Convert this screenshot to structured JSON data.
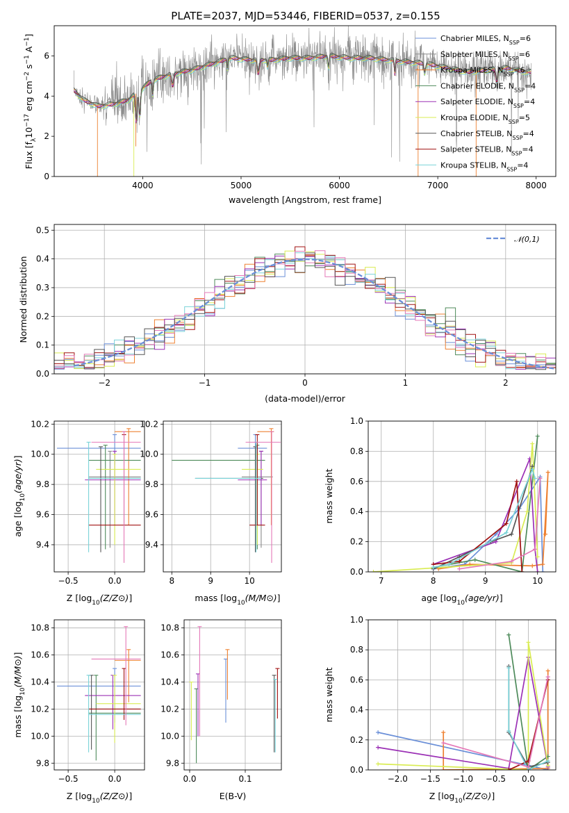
{
  "figure_title": "PLATE=2037, MJD=53446, FIBERID=0537, z=0.155",
  "colors": [
    "#6a8fd8",
    "#8a8a8a",
    "#ee8030",
    "#4d8a5a",
    "#9b30b5",
    "#d9ec52",
    "#555555",
    "#a01010",
    "#79d2d8",
    "#e478b8",
    "#e07820"
  ],
  "models": [
    {
      "name": "Chabrier MILES, N",
      "sub": "SSP",
      "n": "=6",
      "color": "#6a8fd8"
    },
    {
      "name": "Salpeter MILES, N",
      "sub": "SSP",
      "n": "=6",
      "color": "#8a8a8a"
    },
    {
      "name": "Kroupa MILES, N",
      "sub": "SSP",
      "n": "=6",
      "color": "#ee8030"
    },
    {
      "name": "Chabrier ELODIE, N",
      "sub": "SSP",
      "n": "=4",
      "color": "#4d8a5a"
    },
    {
      "name": "Salpeter ELODIE, N",
      "sub": "SSP",
      "n": "=4",
      "color": "#9b30b5"
    },
    {
      "name": "Kroupa ELODIE, N",
      "sub": "SSP",
      "n": "=5",
      "color": "#d9ec52"
    },
    {
      "name": "Chabrier STELIB, N",
      "sub": "SSP",
      "n": "=4",
      "color": "#555555"
    },
    {
      "name": "Salpeter STELIB, N",
      "sub": "SSP",
      "n": "=4",
      "color": "#a01010"
    },
    {
      "name": "Kroupa STELIB, N",
      "sub": "SSP",
      "n": "=4",
      "color": "#79d2d8"
    }
  ],
  "chart_data": [
    {
      "id": "spectrum",
      "type": "line",
      "xlabel": "wavelength [Angstrom, rest frame]",
      "ylabel": "Flux [f_λ 10^-17 erg cm^-2 s^-1 A^-1]",
      "xlim": [
        3100,
        8200
      ],
      "ylim": [
        0,
        7.5
      ],
      "xticks": [
        4000,
        5000,
        6000,
        7000,
        8000
      ],
      "yticks": [
        0,
        2,
        4,
        6
      ],
      "continuum_points": [
        [
          3300,
          4.3
        ],
        [
          3400,
          3.8
        ],
        [
          3550,
          3.5
        ],
        [
          3700,
          3.6
        ],
        [
          3850,
          3.8
        ],
        [
          3950,
          4.2
        ],
        [
          4100,
          4.8
        ],
        [
          4300,
          5.1
        ],
        [
          4500,
          5.3
        ],
        [
          4700,
          5.6
        ],
        [
          4900,
          5.9
        ],
        [
          5100,
          5.8
        ],
        [
          5300,
          5.8
        ],
        [
          5500,
          5.9
        ],
        [
          5700,
          5.9
        ],
        [
          5900,
          6.0
        ],
        [
          6100,
          5.9
        ],
        [
          6300,
          5.9
        ],
        [
          6500,
          5.8
        ],
        [
          6700,
          5.7
        ],
        [
          6900,
          5.6
        ],
        [
          7100,
          5.4
        ],
        [
          7300,
          5.2
        ],
        [
          7500,
          5.3
        ],
        [
          7700,
          5.4
        ],
        [
          7900,
          5.2
        ]
      ],
      "grid": false,
      "legend_position": "upper-right"
    },
    {
      "id": "residuals",
      "type": "step-histogram",
      "xlabel": "(data-model)/error",
      "ylabel": "Normed distribution",
      "xlim": [
        -2.5,
        2.5
      ],
      "ylim": [
        0,
        0.52
      ],
      "xticks": [
        -2,
        -1,
        0,
        1,
        2
      ],
      "yticks": [
        0.0,
        0.1,
        0.2,
        0.3,
        0.4,
        0.5
      ],
      "reference": {
        "name": "𝒩(0,1)",
        "type": "gaussian",
        "mean": 0,
        "sigma": 1
      },
      "bins": [
        -2.5,
        -2.4,
        -2.3,
        -2.2,
        -2.1,
        -2.0,
        -1.9,
        -1.8,
        -1.7,
        -1.6,
        -1.5,
        -1.4,
        -1.3,
        -1.2,
        -1.1,
        -1.0,
        -0.9,
        -0.8,
        -0.7,
        -0.6,
        -0.5,
        -0.4,
        -0.3,
        -0.2,
        -0.1,
        0.0,
        0.1,
        0.2,
        0.3,
        0.4,
        0.5,
        0.6,
        0.7,
        0.8,
        0.9,
        1.0,
        1.1,
        1.2,
        1.3,
        1.4,
        1.5,
        1.6,
        1.7,
        1.8,
        1.9,
        2.0,
        2.1,
        2.2,
        2.3,
        2.4,
        2.5
      ],
      "grid": true,
      "legend_position": "upper-right"
    },
    {
      "id": "age_vs_Z",
      "type": "errorbar",
      "xlabel": "Z [log10(Z/Z⊙)]",
      "ylabel": "age [log10(age/yr)]",
      "xlim": [
        -0.65,
        0.32
      ],
      "ylim": [
        9.22,
        10.22
      ],
      "xticks": [
        -0.5,
        0.0
      ],
      "xticklabels": [
        "−0.5",
        "0.0"
      ],
      "yticks": [
        9.4,
        9.6,
        9.8,
        10.0,
        10.2
      ],
      "points": [
        {
          "c": 0,
          "x": 0.0,
          "xe": [
            -0.62,
            0.28
          ],
          "y": 10.04,
          "ye": [
            9.93,
            10.13
          ]
        },
        {
          "c": 1,
          "x": -0.05,
          "xe": [
            -0.28,
            0.28
          ],
          "y": 9.85,
          "ye": [
            9.38,
            10.02
          ]
        },
        {
          "c": 2,
          "x": 0.15,
          "xe": [
            0.0,
            0.28
          ],
          "y": 10.15,
          "ye": [
            9.53,
            10.17
          ]
        },
        {
          "c": 3,
          "x": -0.1,
          "xe": [
            -0.28,
            0.28
          ],
          "y": 9.96,
          "ye": [
            9.37,
            10.06
          ]
        },
        {
          "c": 4,
          "x": 0.0,
          "xe": [
            -0.32,
            0.28
          ],
          "y": 9.83,
          "ye": [
            9.53,
            10.02
          ]
        },
        {
          "c": 5,
          "x": 0.0,
          "xe": [
            -0.2,
            0.28
          ],
          "y": 9.9,
          "ye": [
            9.4,
            10.0
          ]
        },
        {
          "c": 6,
          "x": -0.15,
          "xe": [
            -0.28,
            0.28
          ],
          "y": 9.84,
          "ye": [
            9.35,
            10.05
          ]
        },
        {
          "c": 7,
          "x": 0.1,
          "xe": [
            -0.28,
            0.28
          ],
          "y": 9.53,
          "ye": [
            9.53,
            10.13
          ]
        },
        {
          "c": 8,
          "x": -0.28,
          "xe": [
            -0.28,
            0.28
          ],
          "y": 9.84,
          "ye": [
            9.35,
            10.08
          ]
        },
        {
          "c": 9,
          "x": 0.1,
          "xe": [
            -0.25,
            0.28
          ],
          "y": 10.08,
          "ye": [
            9.28,
            10.15
          ]
        }
      ],
      "grid": true
    },
    {
      "id": "age_vs_mass",
      "type": "errorbar",
      "xlabel": "mass [log10(M/M⊙)]",
      "ylabel": "",
      "xlim": [
        7.78,
        10.82
      ],
      "ylim": [
        9.22,
        10.22
      ],
      "xticks": [
        8,
        9,
        10
      ],
      "yticks": [
        9.4,
        9.6,
        9.8,
        10.0,
        10.2
      ],
      "points": [
        {
          "c": 0,
          "x": 10.15,
          "xe": [
            9.7,
            10.45
          ],
          "y": 10.04,
          "ye": [
            9.93,
            10.13
          ]
        },
        {
          "c": 1,
          "x": 10.3,
          "xe": [
            9.8,
            10.6
          ],
          "y": 9.85,
          "ye": [
            9.38,
            10.02
          ]
        },
        {
          "c": 2,
          "x": 10.56,
          "xe": [
            10.2,
            10.63
          ],
          "y": 10.15,
          "ye": [
            9.53,
            10.17
          ]
        },
        {
          "c": 3,
          "x": 10.2,
          "xe": [
            8.0,
            10.4
          ],
          "y": 9.96,
          "ye": [
            9.37,
            10.06
          ]
        },
        {
          "c": 4,
          "x": 10.3,
          "xe": [
            9.7,
            10.45
          ],
          "y": 9.83,
          "ye": [
            9.53,
            10.02
          ]
        },
        {
          "c": 5,
          "x": 10.2,
          "xe": [
            9.8,
            10.35
          ],
          "y": 9.9,
          "ye": [
            9.4,
            10.0
          ]
        },
        {
          "c": 6,
          "x": 10.15,
          "xe": [
            8.6,
            10.35
          ],
          "y": 9.84,
          "ye": [
            9.35,
            10.05
          ]
        },
        {
          "c": 7,
          "x": 10.2,
          "xe": [
            10.0,
            10.4
          ],
          "y": 9.53,
          "ye": [
            9.53,
            10.13
          ]
        },
        {
          "c": 8,
          "x": 10.17,
          "xe": [
            8.6,
            10.3
          ],
          "y": 9.84,
          "ye": [
            9.35,
            10.08
          ]
        },
        {
          "c": 9,
          "x": 10.57,
          "xe": [
            9.9,
            10.8
          ],
          "y": 10.08,
          "ye": [
            9.28,
            10.15
          ]
        }
      ],
      "grid": true
    },
    {
      "id": "massweight_vs_age",
      "type": "line",
      "xlabel": "age [log10(age/yr)]",
      "ylabel": "mass weight",
      "xlim": [
        6.75,
        10.35
      ],
      "ylim": [
        0,
        1
      ],
      "xticks": [
        7,
        8,
        9,
        10
      ],
      "yticks": [
        0.0,
        0.2,
        0.4,
        0.6,
        0.8,
        1.0
      ],
      "series": [
        {
          "c": 0,
          "x": [
            8.0,
            8.6,
            9.2,
            9.65,
            10.05,
            10.1
          ],
          "y": [
            0.02,
            0.05,
            0.25,
            0.42,
            0.63,
            0.0
          ]
        },
        {
          "c": 2,
          "x": [
            8.1,
            8.7,
            9.9,
            10.1,
            10.2,
            10.15
          ],
          "y": [
            0.02,
            0.05,
            0.04,
            0.05,
            0.66,
            0.25
          ]
        },
        {
          "c": 3,
          "x": [
            8.0,
            8.8,
            9.7,
            10.0
          ],
          "y": [
            0.03,
            0.08,
            0.0,
            0.9
          ]
        },
        {
          "c": 4,
          "x": [
            8.0,
            9.2,
            9.85,
            9.95,
            10.0
          ],
          "y": [
            0.05,
            0.2,
            0.75,
            0.15,
            0.0
          ]
        },
        {
          "c": 5,
          "x": [
            6.85,
            9.5,
            9.8,
            9.9,
            10.0
          ],
          "y": [
            0.0,
            0.06,
            0.4,
            0.85,
            0.1
          ]
        },
        {
          "c": 6,
          "x": [
            8.0,
            8.5,
            9.1,
            9.5,
            9.9
          ],
          "y": [
            0.02,
            0.1,
            0.2,
            0.25,
            0.7
          ]
        },
        {
          "c": 7,
          "x": [
            8.0,
            8.5,
            9.4,
            9.6,
            9.7
          ],
          "y": [
            0.05,
            0.07,
            0.32,
            0.6,
            0.0
          ]
        },
        {
          "c": 8,
          "x": [
            8.0,
            8.3,
            9.4,
            9.9,
            9.95
          ],
          "y": [
            0.03,
            0.05,
            0.26,
            0.68,
            0.62
          ]
        },
        {
          "c": 9,
          "x": [
            8.5,
            9.5,
            9.95,
            10.05
          ],
          "y": [
            0.02,
            0.07,
            0.15,
            0.62
          ]
        }
      ],
      "grid": true
    },
    {
      "id": "mass_vs_Z",
      "type": "errorbar",
      "xlabel": "Z [log10(Z/Z⊙)]",
      "ylabel": "mass [log10(M/M⊙)]",
      "xlim": [
        -0.65,
        0.32
      ],
      "ylim": [
        9.75,
        10.86
      ],
      "xticks": [
        -0.5,
        0.0
      ],
      "xticklabels": [
        "−0.5",
        "0.0"
      ],
      "yticks": [
        9.8,
        10.0,
        10.2,
        10.4,
        10.6,
        10.8
      ],
      "points": [
        {
          "c": 0,
          "x": 0.0,
          "xe": [
            -0.62,
            0.28
          ],
          "y": 10.37,
          "ye": [
            10.1,
            10.5
          ]
        },
        {
          "c": 2,
          "x": 0.15,
          "xe": [
            0.0,
            0.28
          ],
          "y": 10.56,
          "ye": [
            10.25,
            10.64
          ]
        },
        {
          "c": 3,
          "x": -0.2,
          "xe": [
            -0.28,
            0.28
          ],
          "y": 10.17,
          "ye": [
            9.82,
            10.45
          ]
        },
        {
          "c": 4,
          "x": -0.02,
          "xe": [
            -0.32,
            0.28
          ],
          "y": 10.3,
          "ye": [
            10.05,
            10.45
          ]
        },
        {
          "c": 5,
          "x": 0.0,
          "xe": [
            -0.2,
            0.28
          ],
          "y": 10.24,
          "ye": [
            9.95,
            10.45
          ]
        },
        {
          "c": 6,
          "x": -0.25,
          "xe": [
            -0.28,
            0.28
          ],
          "y": 10.2,
          "ye": [
            9.9,
            10.45
          ]
        },
        {
          "c": 7,
          "x": 0.1,
          "xe": [
            -0.28,
            0.28
          ],
          "y": 10.2,
          "ye": [
            10.12,
            10.5
          ]
        },
        {
          "c": 8,
          "x": -0.28,
          "xe": [
            -0.28,
            0.28
          ],
          "y": 10.16,
          "ye": [
            9.88,
            10.45
          ]
        },
        {
          "c": 9,
          "x": 0.12,
          "xe": [
            -0.25,
            0.28
          ],
          "y": 10.57,
          "ye": [
            10.08,
            10.81
          ]
        }
      ],
      "grid": true
    },
    {
      "id": "mass_vs_EBV",
      "type": "errorbar",
      "xlabel": "E(B-V)",
      "ylabel": "",
      "xlim": [
        -0.01,
        0.165
      ],
      "ylim": [
        9.75,
        10.86
      ],
      "xticks": [
        0.0,
        0.1
      ],
      "yticks": [
        9.8,
        10.0,
        10.2,
        10.4,
        10.6,
        10.8
      ],
      "points": [
        {
          "c": 0,
          "x": 0.065,
          "y": 10.32,
          "ye": [
            10.1,
            10.57
          ]
        },
        {
          "c": 2,
          "x": 0.068,
          "y": 10.42,
          "ye": [
            10.27,
            10.64
          ]
        },
        {
          "c": 3,
          "x": 0.012,
          "y": 10.05,
          "ye": [
            9.8,
            10.35
          ]
        },
        {
          "c": 4,
          "x": 0.015,
          "y": 10.2,
          "ye": [
            10.0,
            10.46
          ]
        },
        {
          "c": 5,
          "x": 0.003,
          "y": 10.15,
          "ye": [
            9.97,
            10.4
          ]
        },
        {
          "c": 6,
          "x": 0.152,
          "y": 10.15,
          "ye": [
            9.88,
            10.45
          ]
        },
        {
          "c": 7,
          "x": 0.158,
          "y": 10.3,
          "ye": [
            10.13,
            10.5
          ]
        },
        {
          "c": 8,
          "x": 0.154,
          "y": 10.15,
          "ye": [
            9.88,
            10.42
          ]
        },
        {
          "c": 9,
          "x": 0.018,
          "y": 10.35,
          "ye": [
            10.0,
            10.81
          ]
        }
      ],
      "grid": true
    },
    {
      "id": "massweight_vs_Z",
      "type": "line",
      "xlabel": "Z [log10(Z/Z⊙)]",
      "ylabel": "mass weight",
      "xlim": [
        -2.45,
        0.42
      ],
      "ylim": [
        0,
        1
      ],
      "xticks": [
        -2.0,
        -1.5,
        -1.0,
        -0.5,
        0.0
      ],
      "xticklabels": [
        "−2.0",
        "−1.5",
        "−1.0",
        "−0.5",
        "0.0"
      ],
      "yticks": [
        0.0,
        0.2,
        0.4,
        0.6,
        0.8,
        1.0
      ],
      "series": [
        {
          "c": 0,
          "x": [
            -2.3,
            0.0,
            0.3,
            0.3
          ],
          "y": [
            0.25,
            0.03,
            0.0,
            0.62
          ]
        },
        {
          "c": 2,
          "x": [
            -1.3,
            -1.3,
            0.3,
            0.3
          ],
          "y": [
            0.25,
            0.0,
            0.01,
            0.66
          ]
        },
        {
          "c": 3,
          "x": [
            -0.3,
            0.0,
            0.3
          ],
          "y": [
            0.9,
            0.0,
            0.09
          ]
        },
        {
          "c": 4,
          "x": [
            -2.3,
            -0.3,
            0.0,
            0.3
          ],
          "y": [
            0.15,
            0.01,
            0.75,
            0.02
          ]
        },
        {
          "c": 5,
          "x": [
            -2.3,
            0.0,
            0.0,
            0.3
          ],
          "y": [
            0.04,
            0.0,
            0.85,
            0.03
          ]
        },
        {
          "c": 6,
          "x": [
            -0.3,
            -0.3,
            0.0,
            0.3
          ],
          "y": [
            0.69,
            0.25,
            0.02,
            0.05
          ]
        },
        {
          "c": 7,
          "x": [
            -0.3,
            0.0,
            0.3
          ],
          "y": [
            0.0,
            0.06,
            0.6
          ]
        },
        {
          "c": 8,
          "x": [
            -0.3,
            -0.3,
            0.0,
            0.3
          ],
          "y": [
            0.68,
            0.26,
            0.0,
            0.06
          ]
        },
        {
          "c": 9,
          "x": [
            -1.3,
            0.0,
            0.3
          ],
          "y": [
            0.18,
            0.02,
            0.62
          ]
        }
      ],
      "grid": true
    }
  ]
}
